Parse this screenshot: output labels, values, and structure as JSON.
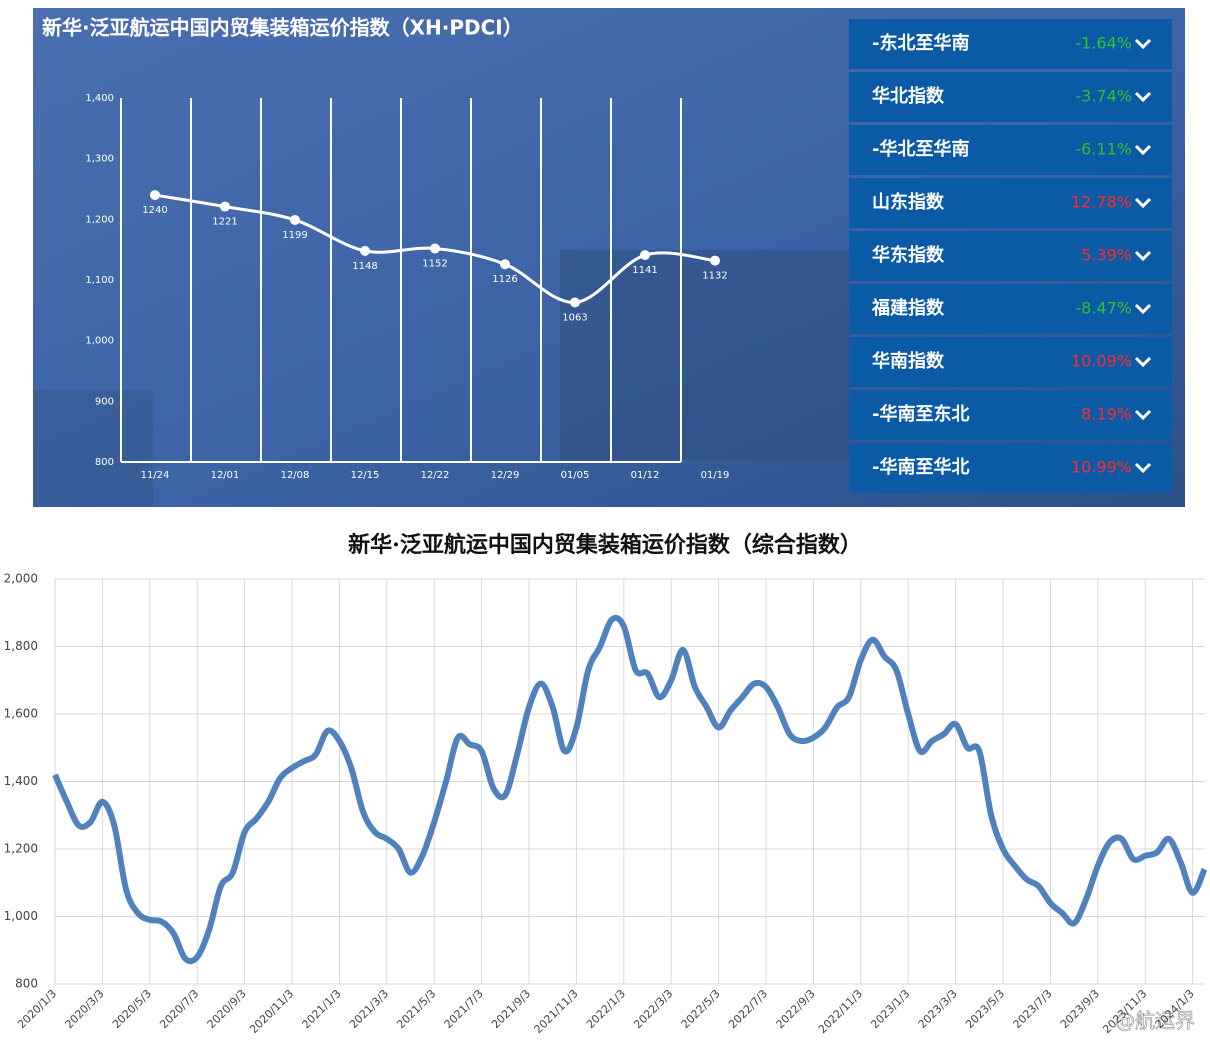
{
  "chart_data": [
    {
      "type": "line",
      "title": "新华·泛亚航运中国内贸集装箱运价指数（XH·PDCI）",
      "categories": [
        "11/24",
        "12/01",
        "12/08",
        "12/15",
        "12/22",
        "12/29",
        "01/05",
        "01/12",
        "01/19"
      ],
      "values": [
        1240,
        1221,
        1199,
        1148,
        1152,
        1126,
        1063,
        1141,
        1132
      ],
      "color": "#ffffff",
      "ylim": [
        800,
        1400
      ],
      "yticks": [
        {
          "value": 800,
          "label": "800"
        },
        {
          "value": 900,
          "label": "900"
        },
        {
          "value": 1000,
          "label": "1,000"
        },
        {
          "value": 1100,
          "label": "1,100"
        },
        {
          "value": 1200,
          "label": "1,200"
        },
        {
          "value": 1300,
          "label": "1,300"
        },
        {
          "value": 1400,
          "label": "1,400"
        }
      ],
      "panel": {
        "categories": [
          "-东北至华南",
          "华北指数",
          "-华北至华南",
          "山东指数",
          "华东指数",
          "福建指数",
          "华南指数",
          "-华南至东北",
          "-华南至华北"
        ],
        "values": [
          -1.64,
          -3.74,
          -6.11,
          12.78,
          5.39,
          -8.47,
          10.09,
          8.19,
          10.99
        ],
        "value_labels": [
          "-1.64%",
          "-3.74%",
          "-6.11%",
          "12.78%",
          "5.39%",
          "-8.47%",
          "10.09%",
          "8.19%",
          "10.99%"
        ],
        "up_color": "#ff2b2b",
        "down_color": "#2ec22e"
      }
    },
    {
      "type": "line",
      "title": "新华·泛亚航运中国内贸集装箱运价指数（综合指数）",
      "categories": [
        "2020/1/3",
        null,
        null,
        null,
        "2020/3/3",
        null,
        null,
        null,
        "2020/5/3",
        null,
        null,
        null,
        "2020/7/3",
        null,
        null,
        null,
        "2020/9/3",
        null,
        null,
        null,
        "2020/11/3",
        null,
        null,
        null,
        "2021/1/3",
        null,
        null,
        null,
        "2021/3/3",
        null,
        null,
        null,
        "2021/5/3",
        null,
        null,
        null,
        "2021/7/3",
        null,
        null,
        null,
        "2021/9/3",
        null,
        null,
        null,
        "2021/11/3",
        null,
        null,
        null,
        "2022/1/3",
        null,
        null,
        null,
        "2022/3/3",
        null,
        null,
        null,
        "2022/5/3",
        null,
        null,
        null,
        "2022/7/3",
        null,
        null,
        null,
        "2022/9/3",
        null,
        null,
        null,
        "2022/11/3",
        null,
        null,
        null,
        "2023/1/3",
        null,
        null,
        null,
        "2023/3/3",
        null,
        null,
        null,
        "2023/5/3",
        null,
        null,
        null,
        "2023/7/3",
        null,
        null,
        null,
        "2023/9/3",
        null,
        null,
        null,
        "2023/11/3",
        null,
        null,
        null,
        "2024/1/3",
        null
      ],
      "values": [
        1420,
        1340,
        1270,
        1280,
        1340,
        1270,
        1080,
        1010,
        990,
        985,
        950,
        875,
        880,
        960,
        1090,
        1130,
        1250,
        1290,
        1340,
        1410,
        1440,
        1460,
        1480,
        1550,
        1520,
        1440,
        1310,
        1250,
        1230,
        1200,
        1130,
        1180,
        1280,
        1400,
        1530,
        1510,
        1490,
        1380,
        1360,
        1480,
        1620,
        1690,
        1620,
        1490,
        1560,
        1730,
        1800,
        1880,
        1860,
        1730,
        1720,
        1650,
        1700,
        1790,
        1680,
        1620,
        1560,
        1610,
        1650,
        1690,
        1680,
        1620,
        1540,
        1520,
        1530,
        1560,
        1620,
        1650,
        1760,
        1820,
        1770,
        1730,
        1600,
        1490,
        1520,
        1540,
        1570,
        1500,
        1490,
        1300,
        1200,
        1150,
        1110,
        1090,
        1040,
        1010,
        980,
        1050,
        1150,
        1220,
        1230,
        1170,
        1180,
        1190,
        1230,
        1160,
        1070,
        1140
      ],
      "color": "#4f81bd",
      "ylim": [
        800,
        2000
      ],
      "yticks": [
        {
          "value": 800,
          "label": "800"
        },
        {
          "value": 1000,
          "label": "1,000"
        },
        {
          "value": 1200,
          "label": "1,200"
        },
        {
          "value": 1400,
          "label": "1,400"
        },
        {
          "value": 1600,
          "label": "1,600"
        },
        {
          "value": 1800,
          "label": "1,800"
        },
        {
          "value": 2000,
          "label": "2,000"
        }
      ],
      "grid": true,
      "watermark": "@航运界"
    }
  ]
}
